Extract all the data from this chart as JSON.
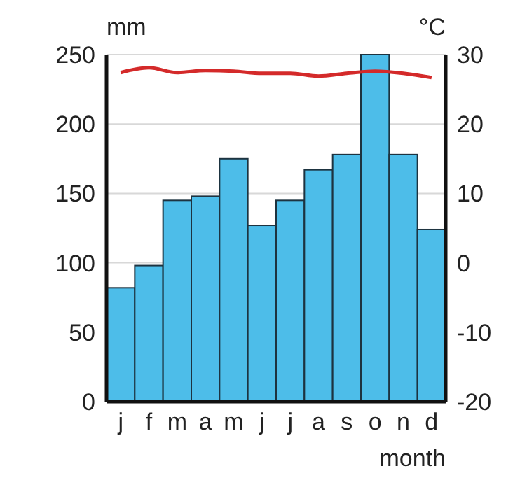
{
  "chart_data": {
    "type": "bar",
    "categories": [
      "j",
      "f",
      "m",
      "a",
      "m",
      "j",
      "j",
      "a",
      "s",
      "o",
      "n",
      "d"
    ],
    "xlabel": "month",
    "ylabel": "mm",
    "y2label": "°C",
    "series": [
      {
        "color": "#4dbde9",
        "values": [
          82,
          98,
          145,
          148,
          175,
          127,
          145,
          167,
          178,
          250,
          178,
          124
        ]
      },
      {
        "type": "line",
        "axis": "y2",
        "color": "#d42a2a",
        "values": [
          27.4,
          28.1,
          27.4,
          27.7,
          27.6,
          27.3,
          27.3,
          26.9,
          27.3,
          27.6,
          27.3,
          26.7
        ]
      }
    ],
    "ylim": [
      0,
      250
    ],
    "yticks": [
      0,
      50,
      100,
      150,
      200,
      250
    ],
    "y2lim": [
      -20,
      30
    ],
    "y2ticks": [
      -20,
      -10,
      0,
      10,
      20,
      30
    ],
    "grid": "y"
  }
}
